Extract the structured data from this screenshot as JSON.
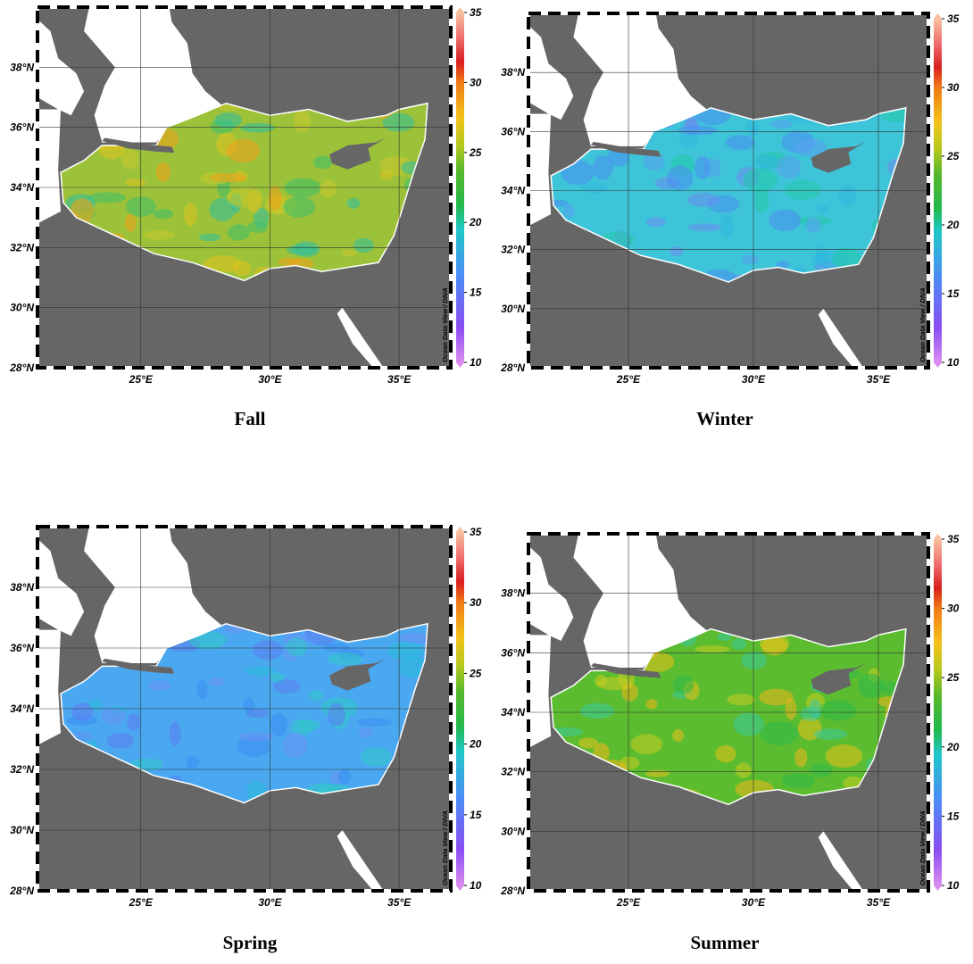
{
  "panels": [
    {
      "caption": "Fall",
      "lat_ticks": [
        {
          "value": 28,
          "label": "28°N"
        },
        {
          "value": 30,
          "label": "30°N"
        },
        {
          "value": 32,
          "label": "32°N"
        },
        {
          "value": 34,
          "label": "34°N"
        },
        {
          "value": 36,
          "label": "36°N"
        },
        {
          "value": 38,
          "label": "38°N"
        }
      ],
      "lon_ticks": [
        {
          "value": 25,
          "label": "25°E"
        },
        {
          "value": 30,
          "label": "30°E"
        },
        {
          "value": 35,
          "label": "35°E"
        }
      ],
      "colorbar_ticks": [
        10,
        15,
        20,
        25,
        30,
        35
      ],
      "credit": "Ocean Data View / DIVA"
    },
    {
      "caption": "Winter",
      "lat_ticks": [
        {
          "value": 28,
          "label": "28°N"
        },
        {
          "value": 30,
          "label": "30°N"
        },
        {
          "value": 32,
          "label": "32°N"
        },
        {
          "value": 34,
          "label": "34°N"
        },
        {
          "value": 36,
          "label": "36°N"
        },
        {
          "value": 38,
          "label": "38°N"
        }
      ],
      "lon_ticks": [
        {
          "value": 25,
          "label": "25°E"
        },
        {
          "value": 30,
          "label": "30°E"
        },
        {
          "value": 35,
          "label": "35°E"
        }
      ],
      "colorbar_ticks": [
        10,
        15,
        20,
        25,
        30,
        35
      ],
      "credit": "Ocean Data View / DIVA"
    },
    {
      "caption": "Spring",
      "lat_ticks": [
        {
          "value": 28,
          "label": "28°N"
        },
        {
          "value": 30,
          "label": "30°N"
        },
        {
          "value": 32,
          "label": "32°N"
        },
        {
          "value": 34,
          "label": "34°N"
        },
        {
          "value": 36,
          "label": "36°N"
        },
        {
          "value": 38,
          "label": "38°N"
        }
      ],
      "lon_ticks": [
        {
          "value": 25,
          "label": "25°E"
        },
        {
          "value": 30,
          "label": "30°E"
        },
        {
          "value": 35,
          "label": "35°E"
        }
      ],
      "colorbar_ticks": [
        10,
        15,
        20,
        25,
        30,
        35
      ],
      "credit": "Ocean Data View / DIVA"
    },
    {
      "caption": "Summer",
      "lat_ticks": [
        {
          "value": 28,
          "label": "28°N"
        },
        {
          "value": 30,
          "label": "30°N"
        },
        {
          "value": 32,
          "label": "32°N"
        },
        {
          "value": 34,
          "label": "34°N"
        },
        {
          "value": 36,
          "label": "36°N"
        },
        {
          "value": 38,
          "label": "38°N"
        }
      ],
      "lon_ticks": [
        {
          "value": 25,
          "label": "25°E"
        },
        {
          "value": 30,
          "label": "30°E"
        },
        {
          "value": 35,
          "label": "35°E"
        }
      ],
      "colorbar_ticks": [
        10,
        15,
        20,
        25,
        30,
        35
      ],
      "credit": "Ocean Data View / DIVA"
    }
  ]
}
